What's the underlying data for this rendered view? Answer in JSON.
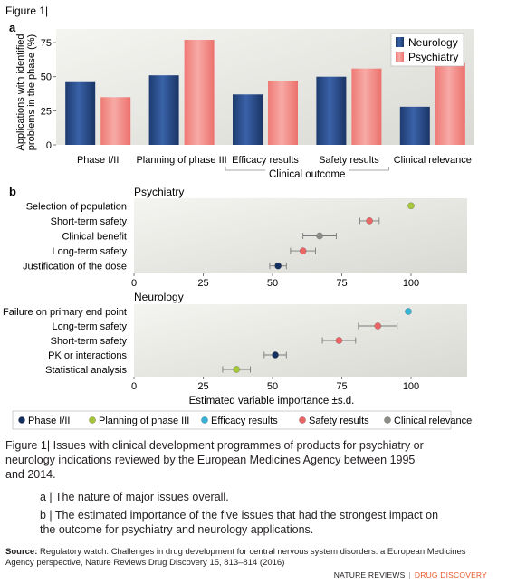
{
  "figure_label": "Figure 1|",
  "panel_a_label": "a",
  "panel_b_label": "b",
  "colors": {
    "neurology": "#2b4f8f",
    "psychiatry": "#f08a85",
    "phase12": "#13305e",
    "planning3": "#a6c63a",
    "efficacy": "#38b3d8",
    "safety": "#ec6565",
    "clinical": "#8d8d8a"
  },
  "caption": {
    "main_label": "Figure 1|",
    "main_text": "Issues with clinical development programmes of products for psychiatry or neurology indications reviewed by the European Medicines Agency between 1995 and 2014.",
    "a_text": "a | The nature of major issues overall.",
    "b_text": "b | The estimated importance of the five issues that had the strongest impact on the outcome for psychiatry and neurology applications."
  },
  "source": {
    "label": "Source:",
    "text": "Regulatory watch: Challenges in drug development for central nervous system disorders: a European Medicines Agency perspective, Nature Reviews Drug Discovery 15, 813–814 (2016)"
  },
  "footer": {
    "brand": "NATURE REVIEWS",
    "sep": "|",
    "journal": "DRUG DISCOVERY"
  },
  "chart_data": [
    {
      "type": "bar",
      "ylabel": "Applications with identified problems in the phase (%)",
      "ylim": [
        0,
        85
      ],
      "yticks": [
        0,
        25,
        50,
        75
      ],
      "categories": [
        "Phase I/II",
        "Planning of phase III",
        "Efficacy results",
        "Safety results",
        "Clinical relevance"
      ],
      "bracket_label": "Clinical outcome",
      "legend_position": "top-right",
      "series": [
        {
          "name": "Neurology",
          "values": [
            46,
            51,
            37,
            50,
            28
          ]
        },
        {
          "name": "Psychiatry",
          "values": [
            35,
            77,
            47,
            56,
            60
          ]
        }
      ]
    },
    {
      "type": "scatter",
      "title": "Psychiatry",
      "xlim": [
        0,
        100
      ],
      "xticks": [
        0,
        25,
        50,
        75,
        100
      ],
      "points": [
        {
          "label": "Selection of population",
          "value": 100,
          "sd": 0,
          "group": "Planning of phase III"
        },
        {
          "label": "Short-term safety",
          "value": 85,
          "sd": 3.5,
          "group": "Safety results"
        },
        {
          "label": "Clinical benefit",
          "value": 67,
          "sd": 6,
          "group": "Clinical relevance"
        },
        {
          "label": "Long-term safety",
          "value": 61,
          "sd": 4.5,
          "group": "Safety results"
        },
        {
          "label": "Justification of the dose",
          "value": 52,
          "sd": 3,
          "group": "Phase I/II"
        }
      ]
    },
    {
      "type": "scatter",
      "title": "Neurology",
      "xlabel": "Estimated variable importance ±s.d.",
      "xlim": [
        0,
        100
      ],
      "xticks": [
        0,
        25,
        50,
        75,
        100
      ],
      "points": [
        {
          "label": "Failure on primary end point",
          "value": 99,
          "sd": 0,
          "group": "Efficacy results"
        },
        {
          "label": "Long-term safety",
          "value": 88,
          "sd": 7,
          "group": "Safety results"
        },
        {
          "label": "Short-term safety",
          "value": 74,
          "sd": 6,
          "group": "Safety results"
        },
        {
          "label": "PK or interactions",
          "value": 51,
          "sd": 4,
          "group": "Phase I/II"
        },
        {
          "label": "Statistical analysis",
          "value": 37,
          "sd": 5,
          "group": "Planning of phase III"
        }
      ],
      "legend": [
        "Phase I/II",
        "Planning of phase III",
        "Efficacy results",
        "Safety results",
        "Clinical relevance"
      ],
      "legend_position": "bottom"
    }
  ]
}
